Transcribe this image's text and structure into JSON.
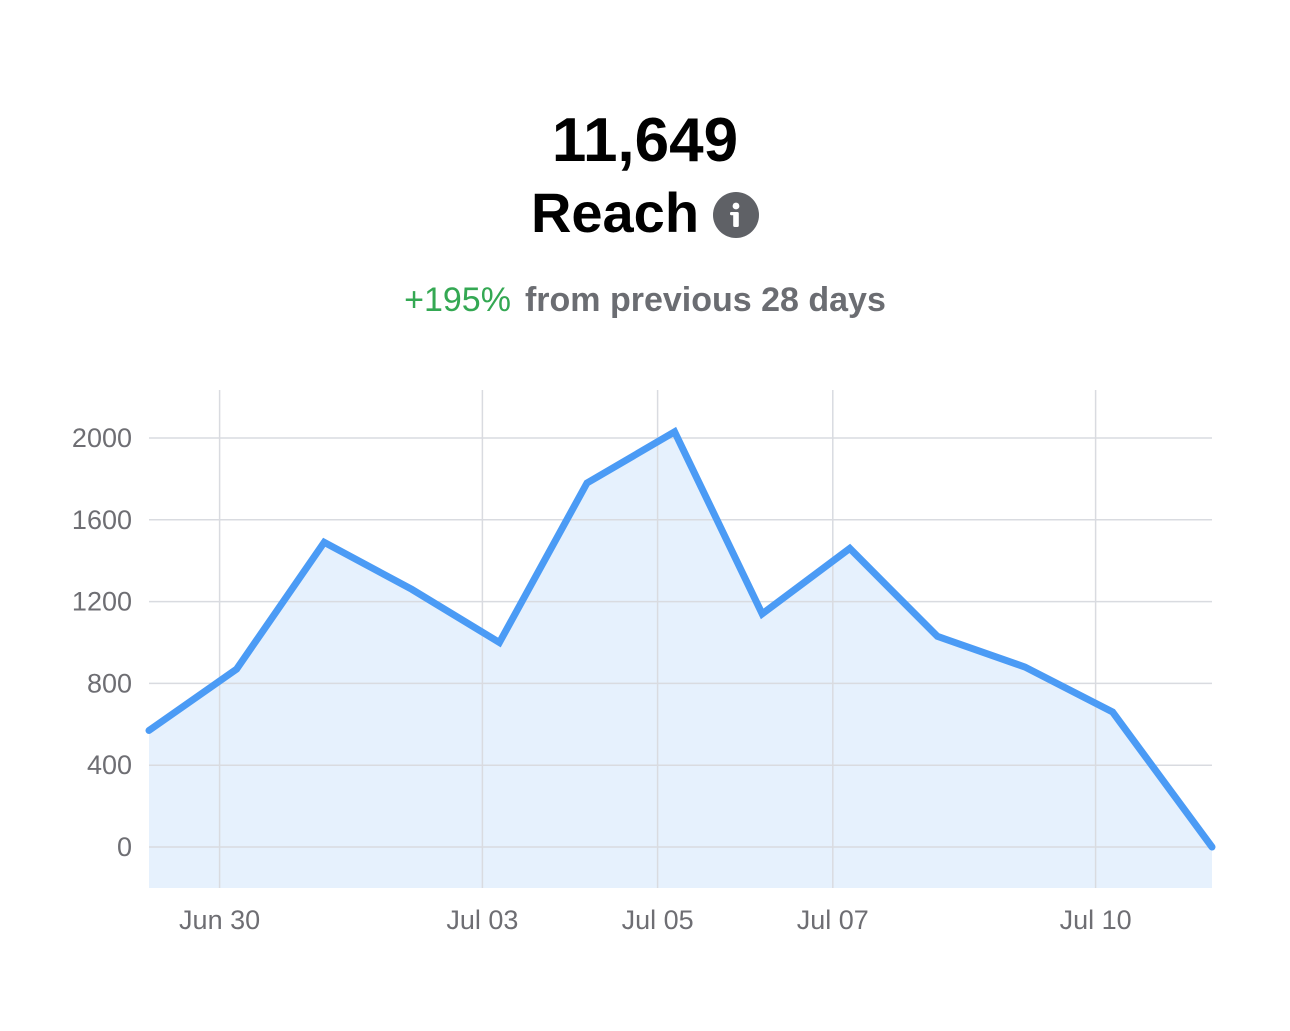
{
  "summary": {
    "total": "11,649",
    "metric": "Reach",
    "change_pct": "+195%",
    "change_text": "from previous 28 days"
  },
  "icons": {
    "info": "info-icon"
  },
  "colors": {
    "line": "#4b9bf5",
    "fill": "#e6f1fd",
    "grid": "#d9dbe0",
    "positive": "#34a853"
  },
  "chart_data": {
    "type": "area",
    "title": "",
    "xlabel": "",
    "ylabel": "",
    "ylim": [
      -200,
      2250
    ],
    "yticks": [
      0,
      400,
      800,
      1200,
      1600,
      2000
    ],
    "xticks": [
      {
        "label": "Jun 30",
        "x": 1
      },
      {
        "label": "Jul 03",
        "x": 4
      },
      {
        "label": "Jul 05",
        "x": 6
      },
      {
        "label": "Jul 07",
        "x": 8
      },
      {
        "label": "Jul 10",
        "x": 11
      }
    ],
    "x": [
      0,
      1,
      2,
      3,
      4,
      5,
      6,
      7,
      8,
      9,
      10,
      11,
      12,
      13
    ],
    "series": [
      {
        "values": [
          570,
          870,
          1490,
          1260,
          1000,
          1780,
          2030,
          1140,
          1460,
          1030,
          880,
          660,
          0,
          0
        ]
      }
    ],
    "grid": true,
    "legend": "none"
  }
}
